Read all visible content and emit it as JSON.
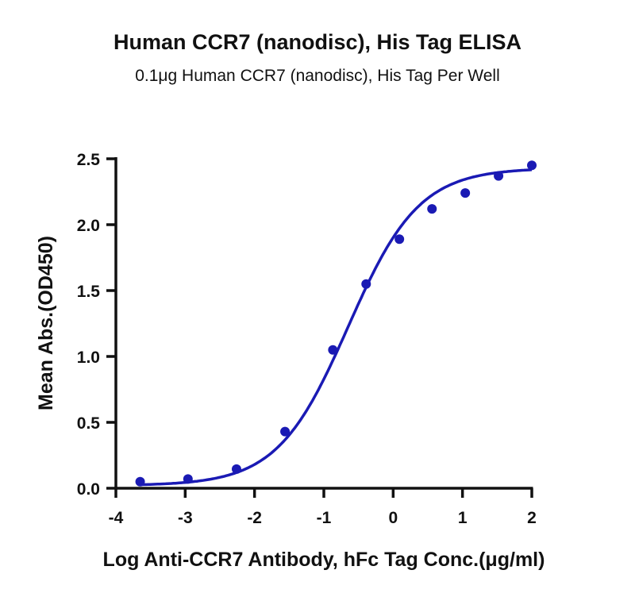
{
  "chart_data": {
    "type": "scatter",
    "title": "Human CCR7 (nanodisc), His Tag ELISA",
    "subtitle": "0.1μg Human CCR7 (nanodisc), His Tag Per Well",
    "xlabel": "Log Anti-CCR7 Antibody, hFc Tag Conc.(μg/ml)",
    "ylabel": "Mean Abs.(OD450)",
    "xlim": [
      -4,
      2
    ],
    "ylim": [
      0,
      2.5
    ],
    "xticks": [
      "-4",
      "-3",
      "-2",
      "-1",
      "0",
      "1",
      "2"
    ],
    "yticks": [
      "0.0",
      "0.5",
      "1.0",
      "1.5",
      "2.0",
      "2.5"
    ],
    "grid": false,
    "color": "#1a1ab4",
    "points": {
      "x": [
        -3.65,
        -2.96,
        -2.26,
        -1.56,
        -0.87,
        -0.39,
        0.09,
        0.56,
        1.04,
        1.52,
        2.0
      ],
      "y": [
        0.05,
        0.07,
        0.145,
        0.43,
        1.05,
        1.55,
        1.89,
        2.12,
        2.24,
        2.37,
        2.45
      ]
    },
    "fit": {
      "model": "4PL",
      "bottom": 0.02,
      "top": 2.43,
      "logEC50": -0.65,
      "hill": 0.85,
      "x_range": [
        -3.65,
        2.0
      ]
    }
  }
}
